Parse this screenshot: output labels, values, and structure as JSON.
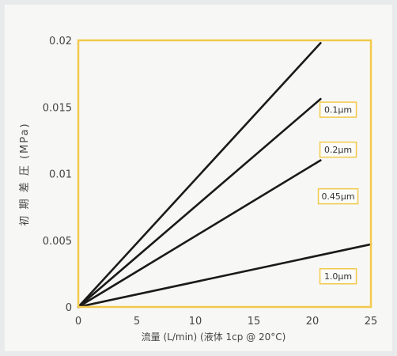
{
  "chart_data": {
    "type": "line",
    "xlabel": "流量 (L/min) (液体 1cp @ 20°C)",
    "ylabel": "初 期 差 圧 (MPa)",
    "xlim": [
      0,
      25
    ],
    "ylim": [
      0,
      0.02
    ],
    "x_ticks": [
      "0",
      "5",
      "10",
      "15",
      "20",
      "25"
    ],
    "y_ticks": [
      "0",
      "0.005",
      "0.01",
      "0.015",
      "0.02"
    ],
    "grid": false,
    "frame_color": "#f2c94c",
    "line_color": "#1a1a1a",
    "series": [
      {
        "name": "0.1μm",
        "x": [
          0,
          20.7
        ],
        "y": [
          0,
          0.0198
        ]
      },
      {
        "name": "0.2μm",
        "x": [
          0,
          20.7
        ],
        "y": [
          0,
          0.0156
        ]
      },
      {
        "name": "0.45μm",
        "x": [
          0,
          20.7
        ],
        "y": [
          0,
          0.011
        ]
      },
      {
        "name": "1.0μm",
        "x": [
          0,
          25
        ],
        "y": [
          0,
          0.0047
        ]
      }
    ]
  }
}
